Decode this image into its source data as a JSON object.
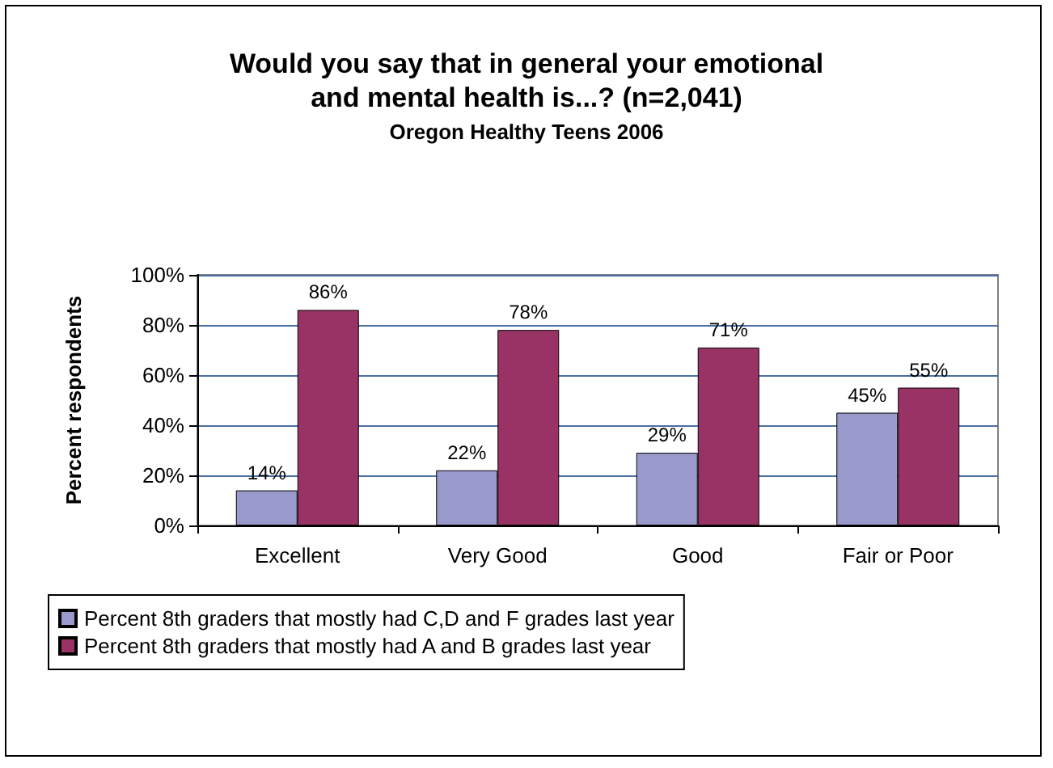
{
  "chart_data": {
    "type": "bar",
    "title": "Would you say that in general your emotional\nand mental health is...? (n=2,041)",
    "subtitle": "Oregon Healthy Teens 2006",
    "ylabel": "Percent respondents",
    "categories": [
      "Excellent",
      "Very Good",
      "Good",
      "Fair or Poor"
    ],
    "series": [
      {
        "name": "Percent 8th graders that mostly had C,D and F grades last year",
        "color": "#9999cc",
        "values": [
          14,
          22,
          29,
          45
        ],
        "value_labels": [
          "14%",
          "22%",
          "29%",
          "45%"
        ]
      },
      {
        "name": "Percent 8th graders that mostly had A and B grades last year",
        "color": "#993366",
        "values": [
          86,
          78,
          71,
          55
        ],
        "value_labels": [
          "86%",
          "78%",
          "71%",
          "55%"
        ]
      }
    ],
    "ylim": [
      0,
      100
    ],
    "yticks": [
      {
        "value": 0,
        "label": "0%"
      },
      {
        "value": 20,
        "label": "20%"
      },
      {
        "value": 40,
        "label": "40%"
      },
      {
        "value": 60,
        "label": "60%"
      },
      {
        "value": 80,
        "label": "80%"
      },
      {
        "value": 100,
        "label": "100%"
      }
    ],
    "grid": "y",
    "legend": "bottom"
  }
}
